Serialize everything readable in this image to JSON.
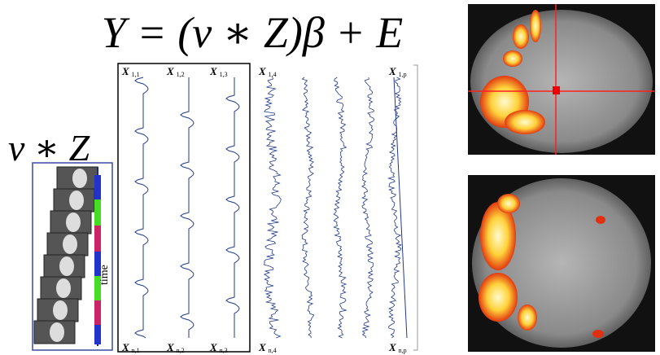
{
  "equation": "Y = (v ∗ Z)β + E",
  "stimulus": {
    "label": "v ∗ Z",
    "axis_label": "time"
  },
  "design_matrix": {
    "top_labels": [
      {
        "symbol": "X",
        "subscript": "1,1"
      },
      {
        "symbol": "X",
        "subscript": "1,2"
      },
      {
        "symbol": "X",
        "subscript": "1,3"
      },
      {
        "symbol": "X",
        "subscript": "1,4"
      },
      {
        "symbol": "X",
        "subscript": "1,p"
      }
    ],
    "bottom_labels": [
      {
        "symbol": "X",
        "subscript": "n,1"
      },
      {
        "symbol": "X",
        "subscript": "n,2"
      },
      {
        "symbol": "X",
        "subscript": "n,3"
      },
      {
        "symbol": "X",
        "subscript": "n,4"
      },
      {
        "symbol": "X",
        "subscript": "n,p"
      }
    ]
  }
}
